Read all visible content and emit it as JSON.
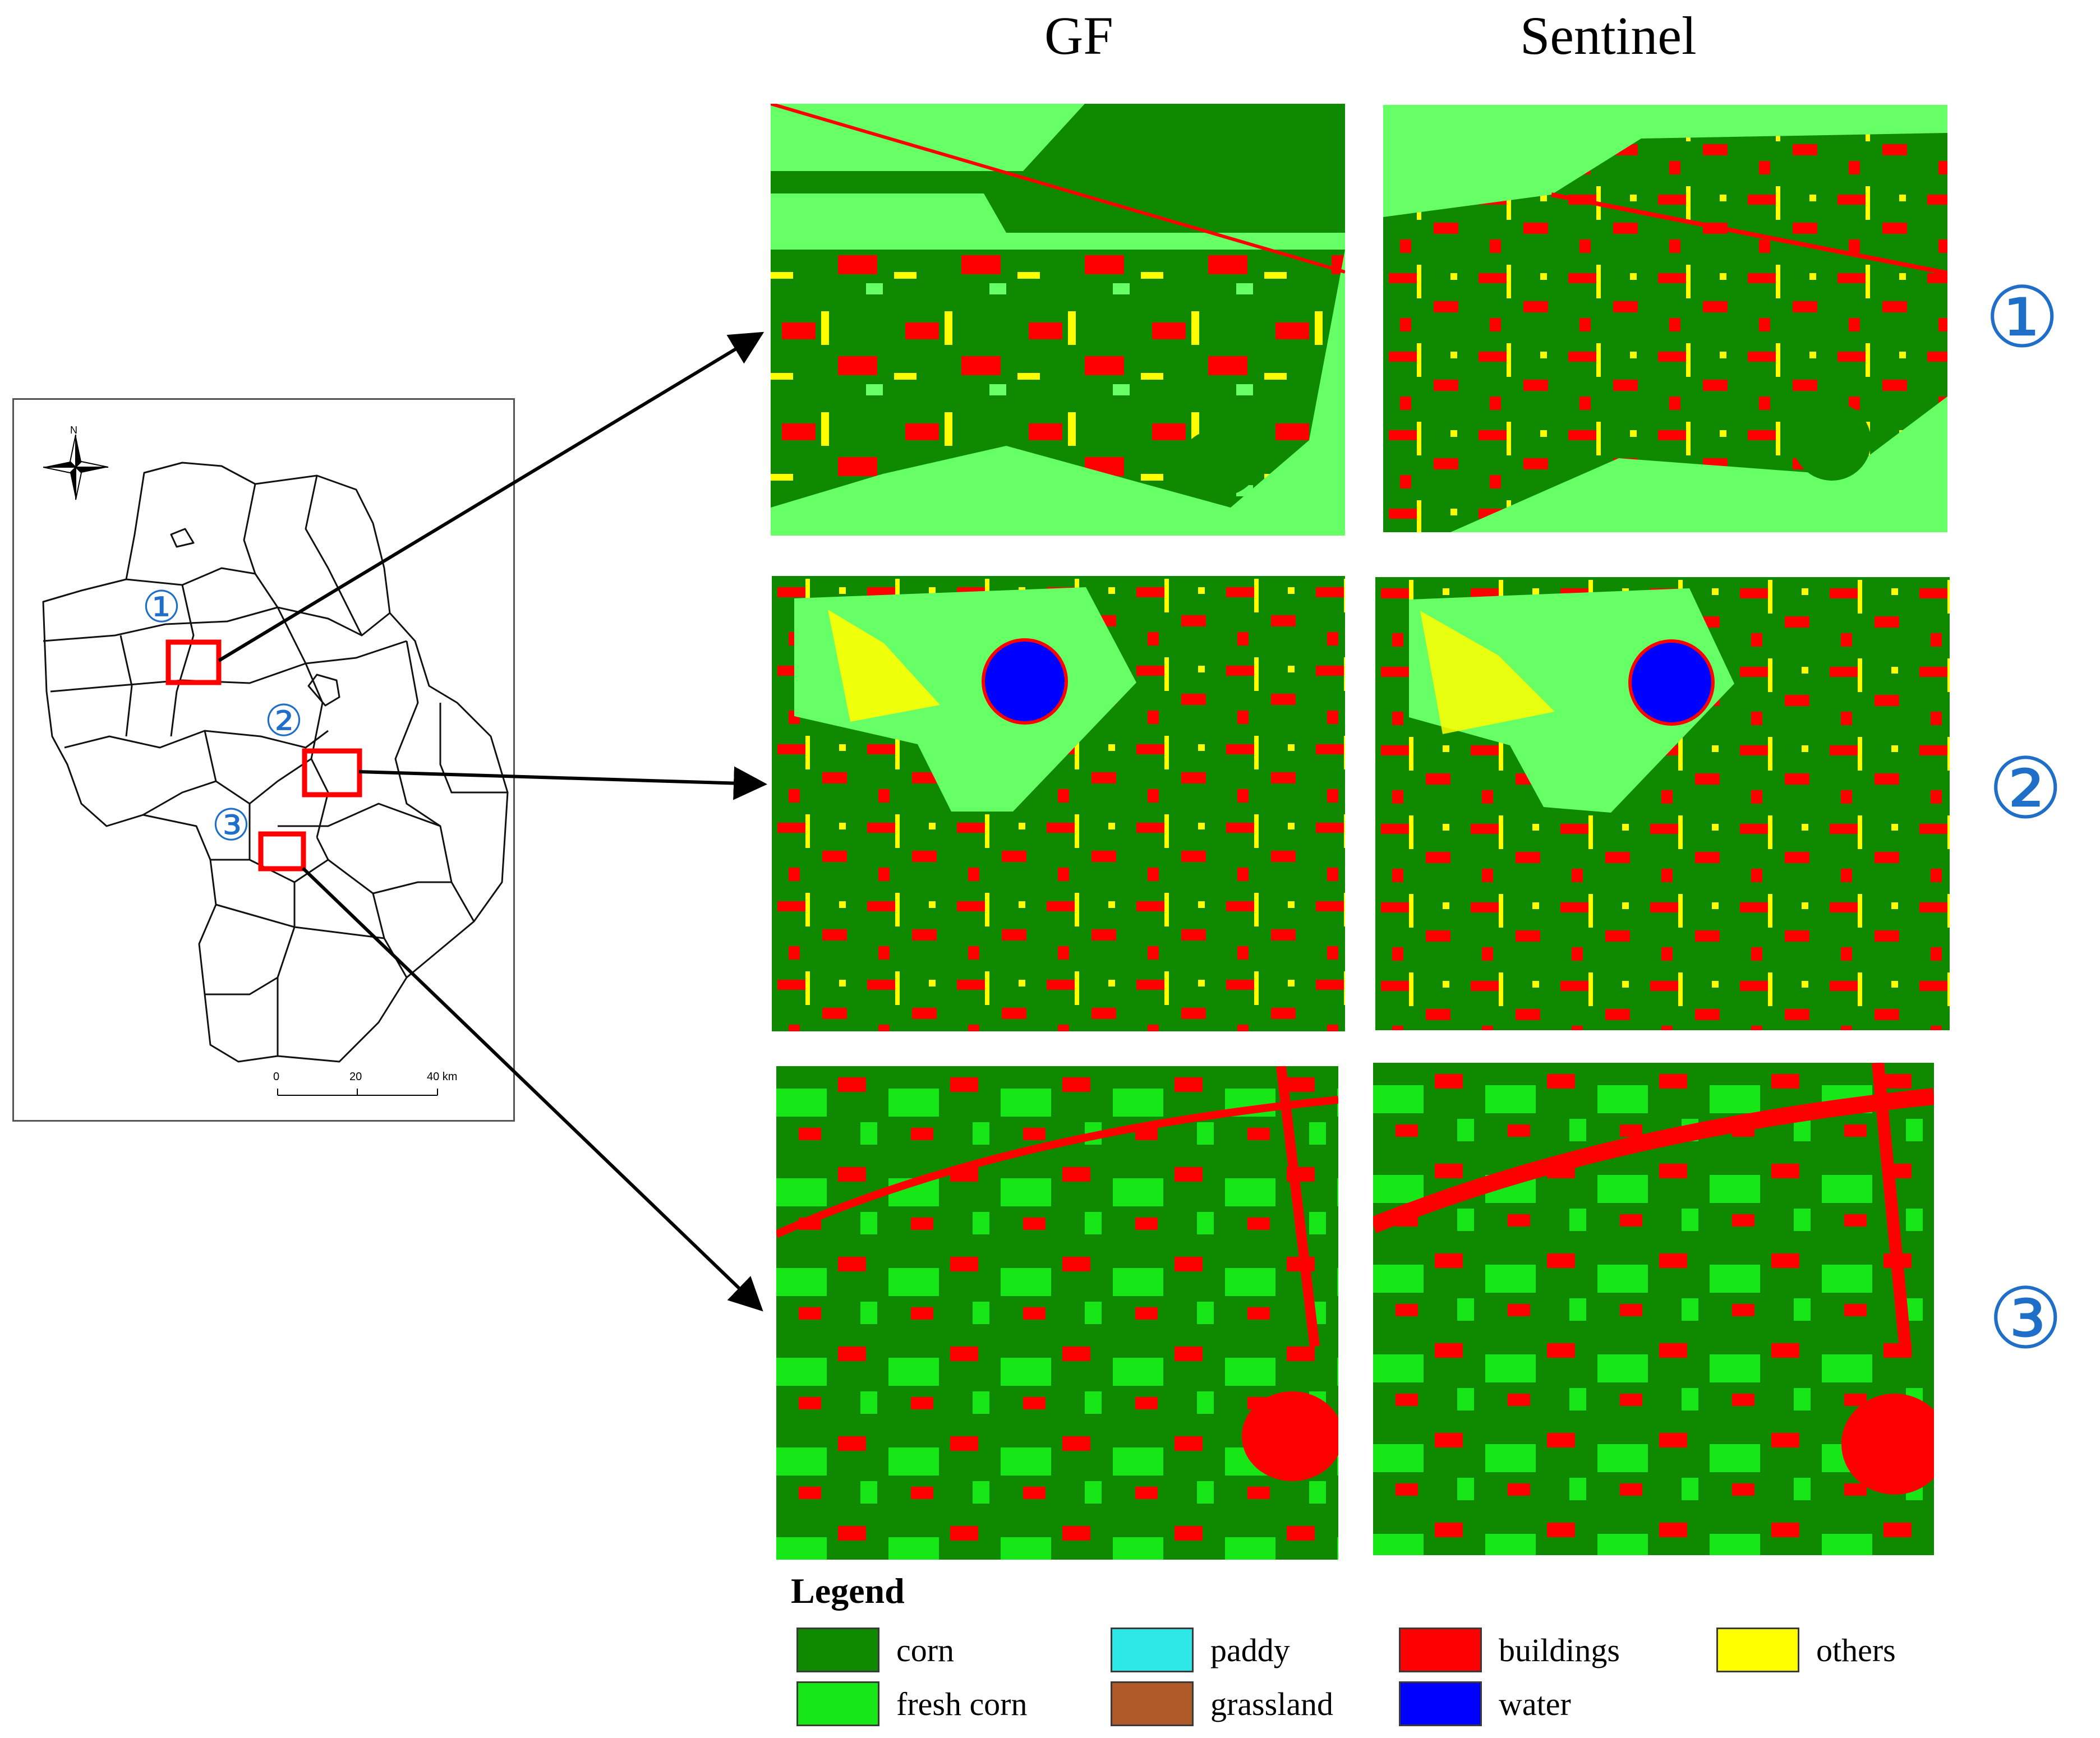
{
  "columns": {
    "gf": "GF",
    "sentinel": "Sentinel"
  },
  "region_markers": [
    "①",
    "②",
    "③"
  ],
  "overview_map": {
    "north_label": "N",
    "scale_labels": [
      "0",
      "20",
      "40 km"
    ]
  },
  "legend": {
    "title": "Legend",
    "items": [
      {
        "label": "corn",
        "color": "#0f8a00"
      },
      {
        "label": "paddy",
        "color": "#2ee8e8"
      },
      {
        "label": "buildings",
        "color": "#ff0000"
      },
      {
        "label": "others",
        "color": "#ffff00"
      },
      {
        "label": "fresh corn",
        "color": "#17e617"
      },
      {
        "label": "grassland",
        "color": "#b05a2a"
      },
      {
        "label": "water",
        "color": "#0000ff"
      }
    ]
  },
  "colors": {
    "corn": "#0f8a00",
    "fresh_corn": "#17e617",
    "light_grass": "#66ff66",
    "paddy": "#2ee8e8",
    "buildings": "#ff0000",
    "water": "#0000ff",
    "others": "#ffff00",
    "highlight_box": "#ff0000",
    "marker": "#1f6fc9"
  }
}
